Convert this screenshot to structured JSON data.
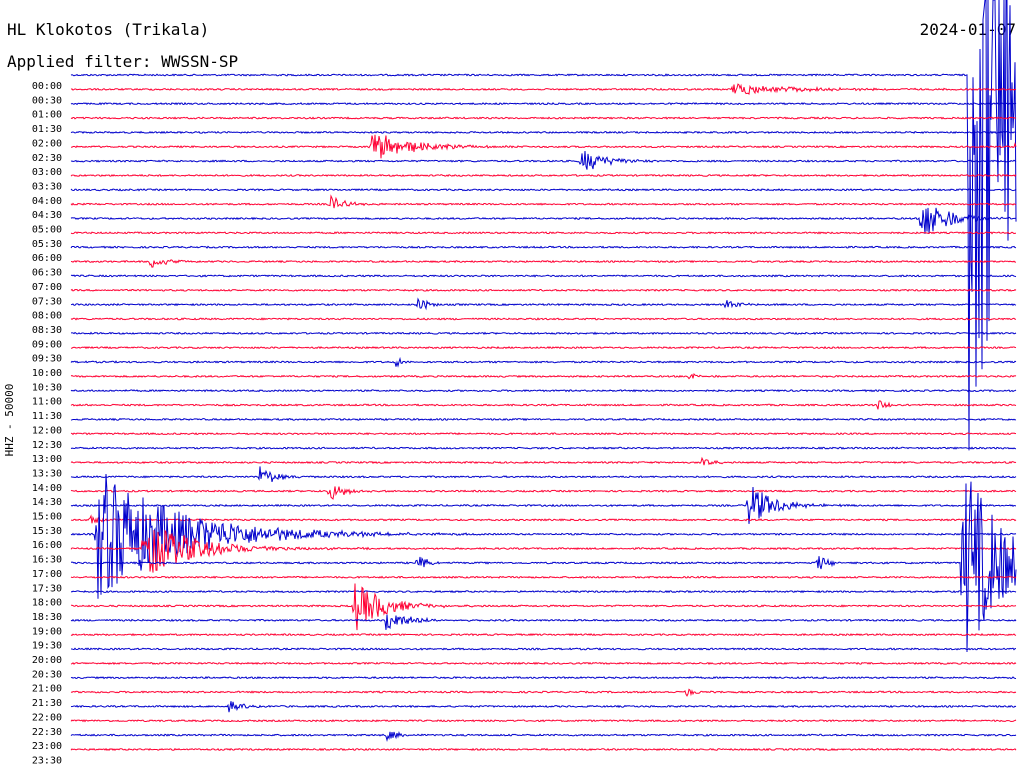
{
  "header": {
    "station": "HL Klokotos (Trikala)",
    "date": "2024-01-07",
    "filter": "Applied filter: WWSSN-SP"
  },
  "chart_data": {
    "type": "line",
    "title": "HL Klokotos (Trikala)",
    "ylabel": "HHZ - 50000",
    "colors": [
      "#0000cc",
      "#ff0033"
    ],
    "row_labels": [
      "00:00",
      "00:30",
      "01:00",
      "01:30",
      "02:00",
      "02:30",
      "03:00",
      "03:30",
      "04:00",
      "04:30",
      "05:00",
      "05:30",
      "06:00",
      "06:30",
      "07:00",
      "07:30",
      "08:00",
      "08:30",
      "09:00",
      "09:30",
      "10:00",
      "10:30",
      "11:00",
      "11:30",
      "12:00",
      "12:30",
      "13:00",
      "13:30",
      "14:00",
      "14:30",
      "15:00",
      "15:30",
      "16:00",
      "16:30",
      "17:00",
      "17:30",
      "18:00",
      "18:30",
      "19:00",
      "19:30",
      "20:00",
      "20:30",
      "21:00",
      "21:30",
      "22:00",
      "22:30",
      "23:00",
      "23:30"
    ],
    "minutes_per_row": 30,
    "events": [
      {
        "row": 1,
        "minute": 21.0,
        "amp": 6,
        "dur": 3.0
      },
      {
        "row": 5,
        "minute": 9.5,
        "amp": 16,
        "dur": 2.0
      },
      {
        "row": 5,
        "minute": 30.0,
        "amp": 10,
        "dur": 1.5
      },
      {
        "row": 6,
        "minute": 16.2,
        "amp": 13,
        "dur": 1.2
      },
      {
        "row": 9,
        "minute": 8.2,
        "amp": 9,
        "dur": 0.7
      },
      {
        "row": 10,
        "minute": 27.0,
        "amp": 26,
        "dur": 1.2
      },
      {
        "row": 13,
        "minute": 2.5,
        "amp": 8,
        "dur": 0.7
      },
      {
        "row": 16,
        "minute": 11.0,
        "amp": 8,
        "dur": 0.5
      },
      {
        "row": 16,
        "minute": 20.8,
        "amp": 6,
        "dur": 0.5
      },
      {
        "row": 20,
        "minute": 10.3,
        "amp": 5,
        "dur": 0.4
      },
      {
        "row": 21,
        "minute": 19.6,
        "amp": 5,
        "dur": 0.4
      },
      {
        "row": 23,
        "minute": 25.6,
        "amp": 6,
        "dur": 0.5
      },
      {
        "row": 27,
        "minute": 20.0,
        "amp": 6,
        "dur": 0.5
      },
      {
        "row": 28,
        "minute": 6.0,
        "amp": 11,
        "dur": 0.8
      },
      {
        "row": 29,
        "minute": 8.2,
        "amp": 10,
        "dur": 0.8
      },
      {
        "row": 30,
        "minute": 21.5,
        "amp": 24,
        "dur": 1.2
      },
      {
        "row": 31,
        "minute": 0.6,
        "amp": 6,
        "dur": 0.5
      },
      {
        "row": 32,
        "minute": 0.8,
        "amp": 70,
        "dur": 4.0
      },
      {
        "row": 33,
        "minute": 2.3,
        "amp": 30,
        "dur": 2.5
      },
      {
        "row": 34,
        "minute": 11.0,
        "amp": 8,
        "dur": 0.6
      },
      {
        "row": 34,
        "minute": 23.7,
        "amp": 9,
        "dur": 0.6
      },
      {
        "row": 37,
        "minute": 9.0,
        "amp": 26,
        "dur": 1.5
      },
      {
        "row": 38,
        "minute": 10.0,
        "amp": 13,
        "dur": 1.0
      },
      {
        "row": 43,
        "minute": 19.5,
        "amp": 6,
        "dur": 0.5
      },
      {
        "row": 44,
        "minute": 5.0,
        "amp": 6,
        "dur": 0.6
      },
      {
        "row": 46,
        "minute": 10.0,
        "amp": 6,
        "dur": 0.6
      },
      {
        "row": 34,
        "minute": 28.3,
        "amp": 110,
        "dur": 2.0
      },
      {
        "row": 0,
        "minute": 28.5,
        "amp": 400,
        "dur": 3.0
      }
    ]
  }
}
